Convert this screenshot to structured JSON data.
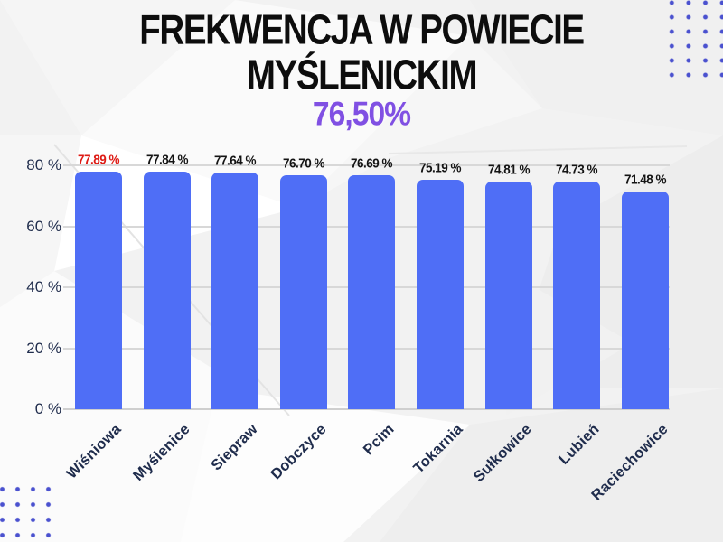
{
  "title": {
    "line1": "FREKWENCJA W POWIECIE",
    "line2": "MYŚLENICKIM"
  },
  "subtitle": "76,50%",
  "chart_data": {
    "type": "bar",
    "title": "FREKWENCJA W POWIECIE MYŚLENICKIM",
    "subtitle_overall_value": "76,50%",
    "categories": [
      "Wiśniowa",
      "Myślenice",
      "Siepraw",
      "Dobczyce",
      "Pcim",
      "Tokarnia",
      "Sułkowice",
      "Lubień",
      "Raciechowice"
    ],
    "values": [
      77.89,
      77.84,
      77.64,
      76.7,
      76.69,
      75.19,
      74.81,
      74.73,
      71.48
    ],
    "value_labels": [
      "77.89 %",
      "77.84 %",
      "77.64 %",
      "76.70 %",
      "76.69 %",
      "75.19 %",
      "74.81 %",
      "74.73 %",
      "71.48 %"
    ],
    "highlight_index": 0,
    "y_ticks": [
      "80 %",
      "60 %",
      "40 %",
      "20 %",
      "0 %"
    ],
    "y_tick_values": [
      80,
      60,
      40,
      20,
      0
    ],
    "ylim": [
      0,
      80
    ],
    "grid": true,
    "legend": "none",
    "xlabel": "",
    "ylabel": ""
  },
  "colors": {
    "bar": "#4f6ef6",
    "highlight_value_label": "#de1b15",
    "value_label": "#141414",
    "subtitle": "#8050e3",
    "axis_text": "#1f2c4c",
    "dots": "#4a51cf",
    "gridline": "#d8d8d8",
    "title_text": "#0d0d0d"
  }
}
